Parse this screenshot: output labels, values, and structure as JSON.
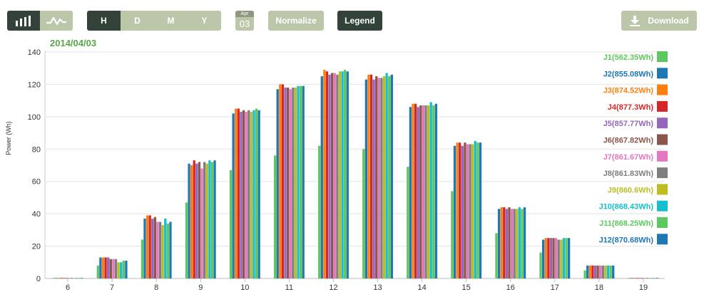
{
  "toolbar": {
    "chart_type_icons": [
      "bar-chart-icon",
      "line-chart-icon"
    ],
    "period_tabs": [
      "H",
      "D",
      "M",
      "Y"
    ],
    "date_badge": {
      "month": "Apr",
      "day": "03"
    },
    "normalize_label": "Normalize",
    "legend_label": "Legend",
    "download_label": "Download",
    "download_icon": "download-icon"
  },
  "colors": {
    "dark_button": "#33433a",
    "light_button": "#bcc7a9",
    "date_title": "#5aa64a"
  },
  "chart_data": {
    "type": "bar",
    "title": "2014/04/03",
    "xlabel": "",
    "ylabel": "Power (Wh)",
    "ylim": [
      0,
      140
    ],
    "yticks": [
      0,
      20,
      40,
      60,
      80,
      100,
      120,
      140
    ],
    "grid": true,
    "legend_position": "right",
    "categories": [
      "6",
      "7",
      "8",
      "9",
      "10",
      "11",
      "12",
      "13",
      "14",
      "15",
      "16",
      "17",
      "18",
      "19"
    ],
    "series": [
      {
        "name": "J1(562.35Wh)",
        "color": "#5ec85e",
        "values": [
          0,
          8,
          24,
          47,
          67,
          76,
          82,
          80,
          69,
          54,
          28,
          16,
          5,
          0
        ]
      },
      {
        "name": "J2(855.08Wh)",
        "color": "#1f77b4",
        "values": [
          0,
          13,
          37,
          71,
          102,
          117,
          125,
          123,
          106,
          82,
          43,
          24,
          8,
          0
        ]
      },
      {
        "name": "J3(874.52Wh)",
        "color": "#ff7f0e",
        "values": [
          0,
          13,
          39,
          70,
          105,
          120,
          129,
          126,
          108,
          84,
          44,
          25,
          8,
          0
        ]
      },
      {
        "name": "J4(877.3Wh)",
        "color": "#d62728",
        "values": [
          0,
          13,
          39,
          73,
          105,
          120,
          128,
          126,
          108,
          84,
          44,
          25,
          8,
          0
        ]
      },
      {
        "name": "J5(857.77Wh)",
        "color": "#9467bd",
        "values": [
          0,
          13,
          37,
          71,
          103,
          118,
          126,
          123,
          106,
          82,
          43,
          25,
          8,
          0
        ]
      },
      {
        "name": "J6(867.82Wh)",
        "color": "#8c564b",
        "values": [
          0,
          12,
          38,
          72,
          104,
          118,
          127,
          125,
          107,
          84,
          44,
          25,
          8,
          0
        ]
      },
      {
        "name": "J7(861.67Wh)",
        "color": "#e377c2",
        "values": [
          0,
          12,
          35,
          68,
          103,
          117,
          127,
          124,
          107,
          83,
          43,
          25,
          8,
          0
        ]
      },
      {
        "name": "J8(861.83Wh)",
        "color": "#7f7f7f",
        "values": [
          0,
          12,
          35,
          72,
          104,
          118,
          126,
          124,
          107,
          83,
          43,
          24,
          8,
          0
        ]
      },
      {
        "name": "J9(860.6Wh)",
        "color": "#bcbd22",
        "values": [
          0,
          10,
          33,
          71,
          103,
          118,
          128,
          125,
          107,
          83,
          43,
          24,
          8,
          0
        ]
      },
      {
        "name": "J10(868.43Wh)",
        "color": "#17becf",
        "values": [
          0,
          10,
          37,
          73,
          104,
          119,
          128,
          127,
          109,
          85,
          44,
          25,
          8,
          0
        ]
      },
      {
        "name": "J11(868.25Wh)",
        "color": "#5ec85e",
        "values": [
          0,
          11,
          34,
          72,
          105,
          119,
          129,
          125,
          107,
          84,
          43,
          25,
          8,
          0
        ]
      },
      {
        "name": "J12(870.68Wh)",
        "color": "#1f77b4",
        "values": [
          0,
          11,
          35,
          73,
          104,
          119,
          128,
          126,
          108,
          84,
          44,
          25,
          8,
          0
        ]
      }
    ]
  }
}
